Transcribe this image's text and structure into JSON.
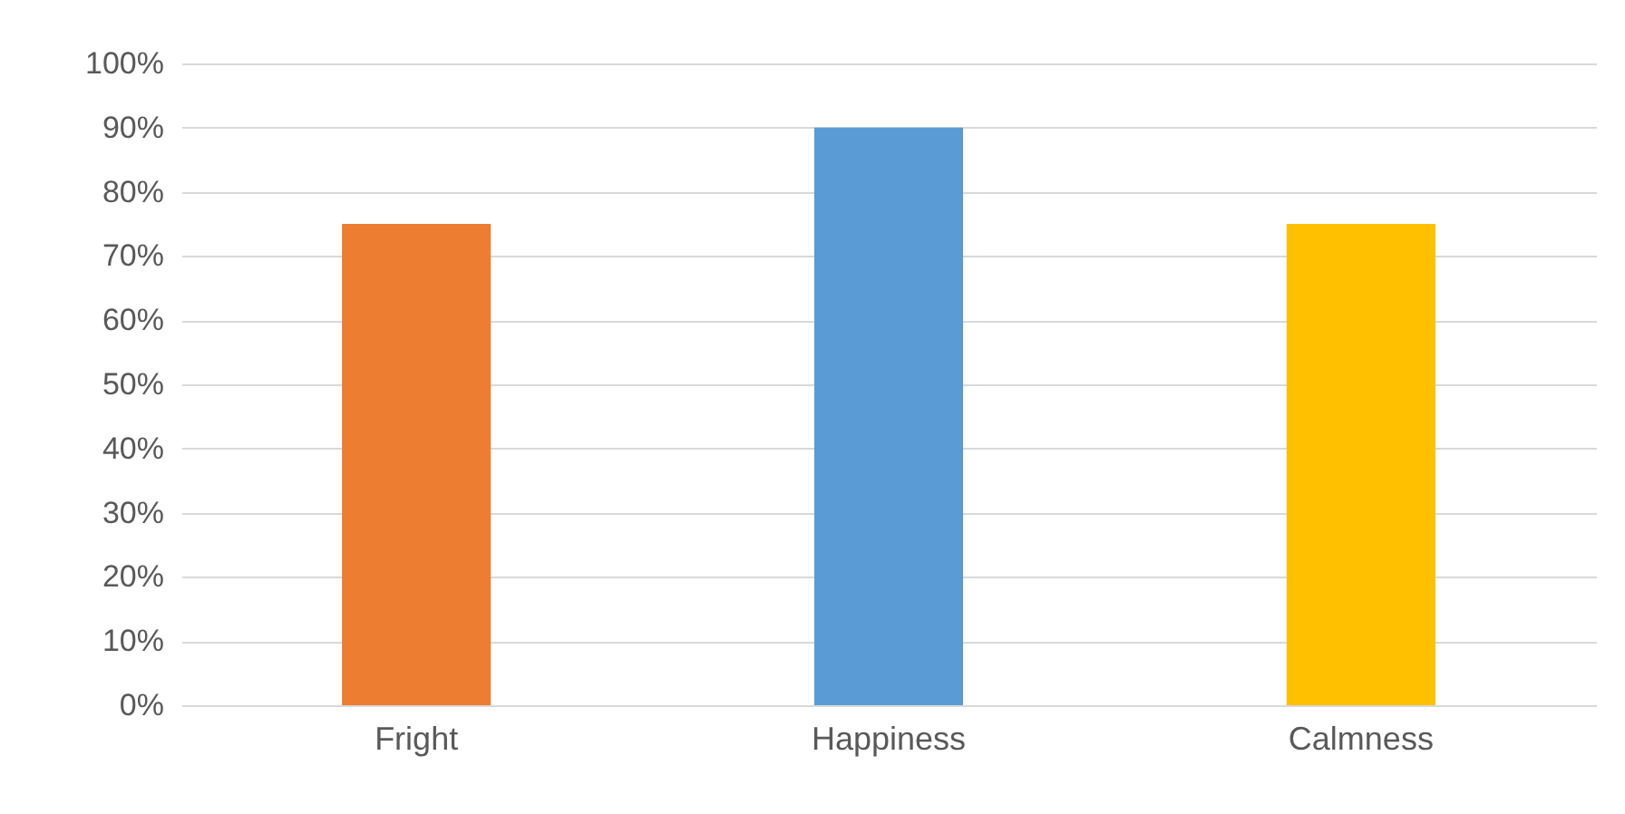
{
  "chart_data": {
    "type": "bar",
    "categories": [
      "Fright",
      "Happiness",
      "Calmness"
    ],
    "values": [
      75,
      90,
      75
    ],
    "colors": [
      "#ed7d31",
      "#5b9bd5",
      "#ffc000"
    ],
    "ylim": [
      0,
      100
    ],
    "yticks": [
      {
        "value": 0,
        "label": "0%"
      },
      {
        "value": 10,
        "label": "10%"
      },
      {
        "value": 20,
        "label": "20%"
      },
      {
        "value": 30,
        "label": "30%"
      },
      {
        "value": 40,
        "label": "40%"
      },
      {
        "value": 50,
        "label": "50%"
      },
      {
        "value": 60,
        "label": "60%"
      },
      {
        "value": 70,
        "label": "70%"
      },
      {
        "value": 80,
        "label": "80%"
      },
      {
        "value": 90,
        "label": "90%"
      },
      {
        "value": 100,
        "label": "100%"
      }
    ],
    "grid": "y"
  }
}
